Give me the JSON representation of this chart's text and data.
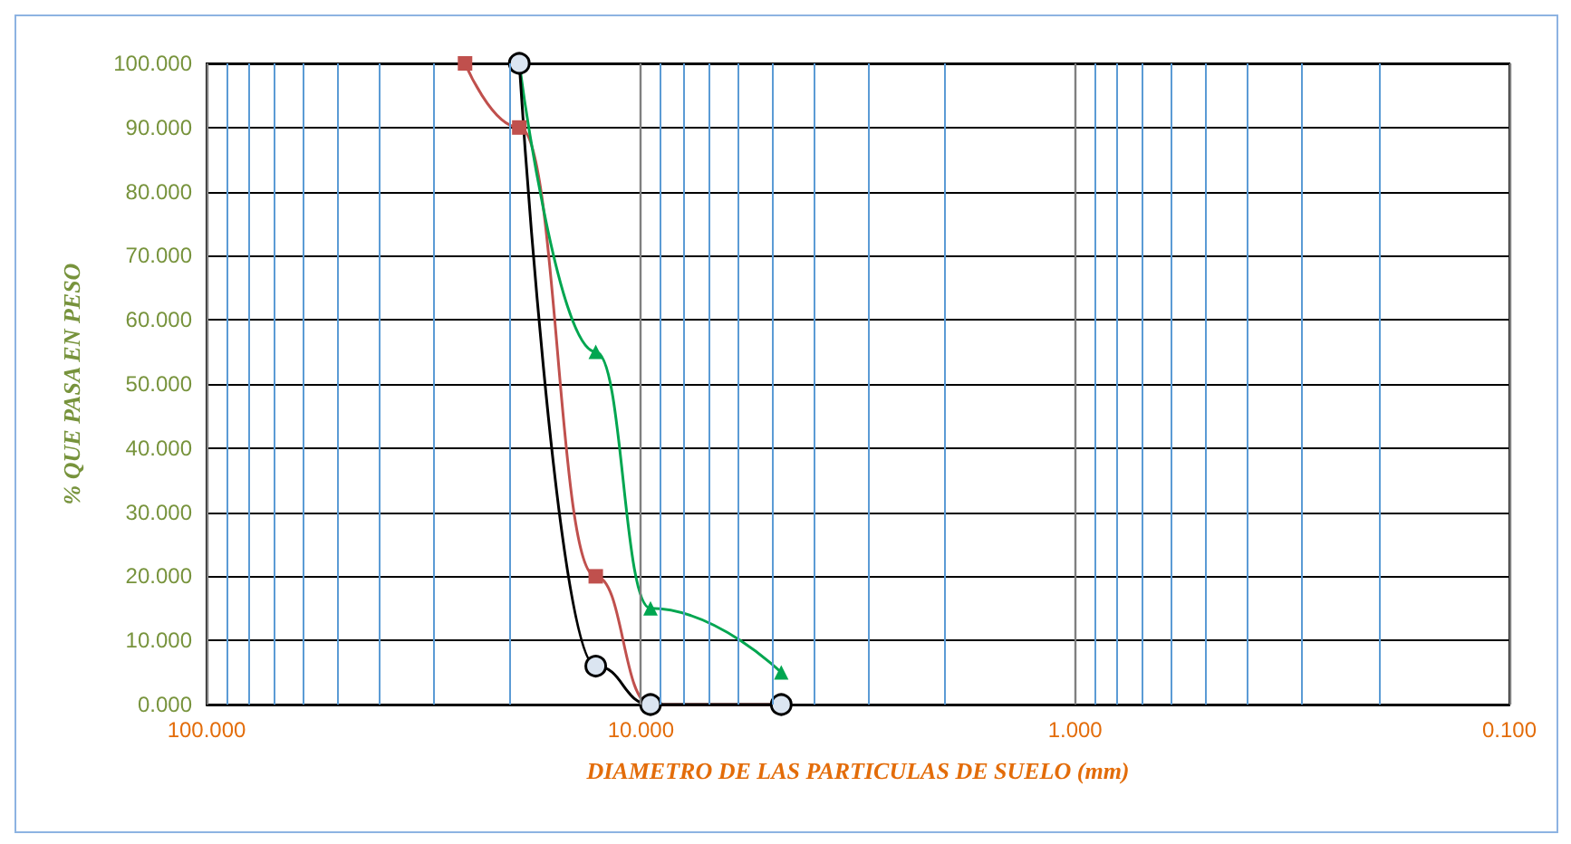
{
  "chart_data": {
    "type": "line",
    "xlabel": "DIAMETRO DE LAS PARTICULAS DE SUELO (mm)",
    "ylabel": "% QUE PASA EN PESO",
    "log": "x",
    "grid": true,
    "xlim": [
      100,
      0.1
    ],
    "xticks": [
      {
        "value": 100,
        "label": "100.000"
      },
      {
        "value": 90,
        "label": null
      },
      {
        "value": 80,
        "label": null
      },
      {
        "value": 70,
        "label": null
      },
      {
        "value": 60,
        "label": null
      },
      {
        "value": 50,
        "label": null
      },
      {
        "value": 40,
        "label": null
      },
      {
        "value": 30,
        "label": null
      },
      {
        "value": 20,
        "label": null
      },
      {
        "value": 10,
        "label": "10.000"
      },
      {
        "value": 9,
        "label": null
      },
      {
        "value": 8,
        "label": null
      },
      {
        "value": 7,
        "label": null
      },
      {
        "value": 6,
        "label": null
      },
      {
        "value": 5,
        "label": null
      },
      {
        "value": 4,
        "label": null
      },
      {
        "value": 3,
        "label": null
      },
      {
        "value": 2,
        "label": null
      },
      {
        "value": 1,
        "label": "1.000"
      },
      {
        "value": 0.9,
        "label": null
      },
      {
        "value": 0.8,
        "label": null
      },
      {
        "value": 0.7,
        "label": null
      },
      {
        "value": 0.6,
        "label": null
      },
      {
        "value": 0.5,
        "label": null
      },
      {
        "value": 0.4,
        "label": null
      },
      {
        "value": 0.3,
        "label": null
      },
      {
        "value": 0.2,
        "label": null
      },
      {
        "value": 0.1,
        "label": "0.100"
      }
    ],
    "ylim": [
      0,
      100
    ],
    "yticks": [
      {
        "value": 0,
        "label": "0.000"
      },
      {
        "value": 10,
        "label": "10.000"
      },
      {
        "value": 20,
        "label": "20.000"
      },
      {
        "value": 30,
        "label": "30.000"
      },
      {
        "value": 40,
        "label": "40.000"
      },
      {
        "value": 50,
        "label": "50.000"
      },
      {
        "value": 60,
        "label": "60.000"
      },
      {
        "value": 70,
        "label": "70.000"
      },
      {
        "value": 80,
        "label": "80.000"
      },
      {
        "value": 90,
        "label": "90.000"
      },
      {
        "value": 100,
        "label": "100.000"
      }
    ],
    "series": [
      {
        "color": "#c0504d",
        "marker": "square",
        "x": [
          25.4,
          19.05,
          12.7,
          9.5,
          4.75
        ],
        "values": [
          100,
          90,
          20,
          0,
          0
        ]
      },
      {
        "color": "#00a650",
        "marker": "triangle",
        "x": [
          19.05,
          12.7,
          9.5,
          4.75
        ],
        "values": [
          100,
          55,
          15,
          5
        ]
      },
      {
        "color": "#000000",
        "marker": "circle",
        "x": [
          19.05,
          12.7,
          9.5,
          4.75
        ],
        "values": [
          100,
          6,
          0,
          0
        ]
      }
    ]
  }
}
